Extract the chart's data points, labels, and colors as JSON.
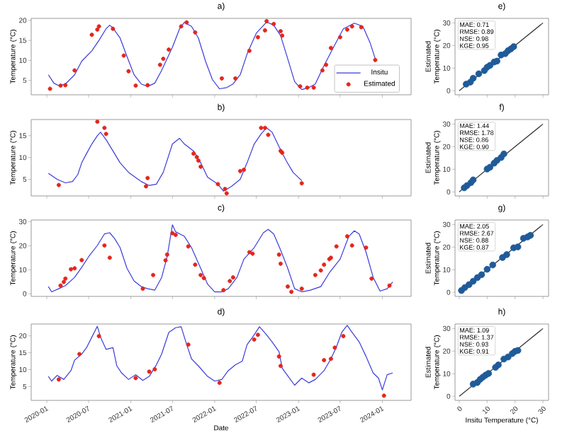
{
  "chart_data": [
    {
      "type": "line",
      "title": "a)",
      "ylabel": "Temperature (°C)",
      "xlim": [
        "2019-10-25",
        "2024-05-05"
      ],
      "ylim": [
        1.4,
        20.5
      ],
      "xticks": [
        "2020-01",
        "2020-07",
        "2021-01",
        "2021-07",
        "2022-01",
        "2022-07",
        "2023-01",
        "2023-07",
        "2024-01"
      ],
      "yticks": [
        5,
        10,
        15,
        20
      ],
      "tick_labels": "y",
      "legend": "bottom right",
      "series": [
        {
          "name": "Insitu",
          "type": "line",
          "color": "#3b3bdc",
          "x": [
            "2020-01-08",
            "2020-02-01",
            "2020-02-22",
            "2020-03-22",
            "2020-05-01",
            "2020-06-01",
            "2020-07-15",
            "2020-08-15",
            "2020-09-15",
            "2020-10-01",
            "2020-10-15",
            "2020-11-15",
            "2020-12-15",
            "2021-01-15",
            "2021-02-15",
            "2021-03-15",
            "2021-04-15",
            "2021-05-15",
            "2021-07-01",
            "2021-08-01",
            "2021-08-22",
            "2021-09-22",
            "2021-10-22",
            "2021-11-22",
            "2021-12-22",
            "2022-01-22",
            "2022-02-22",
            "2022-03-22",
            "2022-04-22",
            "2022-05-22",
            "2022-07-01",
            "2022-08-15",
            "2022-09-15",
            "2022-10-15",
            "2022-11-15",
            "2022-12-15",
            "2023-01-15",
            "2023-02-15",
            "2023-03-15",
            "2023-04-22",
            "2023-06-08",
            "2023-07-15",
            "2023-09-01",
            "2023-10-08",
            "2023-11-08",
            "2023-12-01"
          ],
          "values": [
            6.4,
            4.3,
            3.7,
            4.1,
            6.4,
            9.8,
            12.4,
            15.0,
            17.9,
            18.8,
            18.1,
            15.6,
            11.0,
            6.4,
            4.1,
            3.5,
            4.3,
            7.5,
            13.3,
            17.9,
            19.5,
            18.5,
            15.6,
            9.8,
            5.2,
            2.9,
            3.2,
            4.1,
            6.4,
            11.6,
            16.8,
            19.6,
            18.8,
            16.2,
            10.4,
            4.7,
            2.7,
            3.2,
            4.1,
            8.7,
            13.9,
            17.9,
            19.3,
            18.5,
            14.5,
            10.4
          ]
        },
        {
          "name": "Estimated",
          "type": "scatter",
          "marker": "circle",
          "color": "#e4261c",
          "x": [
            "2020-01-15",
            "2020-03-01",
            "2020-03-22",
            "2020-05-01",
            "2020-07-15",
            "2020-08-08",
            "2020-08-15",
            "2020-10-15",
            "2020-12-01",
            "2020-12-22",
            "2021-01-22",
            "2021-03-15",
            "2021-05-08",
            "2021-05-22",
            "2021-06-15",
            "2021-08-08",
            "2021-09-01",
            "2021-10-08",
            "2022-02-01",
            "2022-04-01",
            "2022-06-01",
            "2022-07-08",
            "2022-08-08",
            "2022-08-15",
            "2022-09-15",
            "2022-10-15",
            "2022-10-22",
            "2023-01-08",
            "2023-02-08",
            "2023-03-08",
            "2023-04-15",
            "2023-05-01",
            "2023-05-22",
            "2023-07-01",
            "2023-08-01",
            "2023-08-22",
            "2023-10-01",
            "2023-12-01"
          ],
          "values": [
            2.9,
            3.7,
            3.8,
            7.5,
            16.4,
            17.7,
            18.5,
            17.9,
            11.2,
            7.3,
            3.7,
            3.8,
            8.9,
            10.4,
            12.7,
            18.5,
            19.5,
            17.0,
            5.5,
            5.5,
            12.4,
            15.8,
            17.5,
            19.8,
            19.1,
            17.3,
            16.2,
            3.5,
            3.2,
            3.2,
            7.5,
            8.9,
            13.1,
            15.8,
            17.7,
            18.5,
            18.3,
            10.1
          ]
        }
      ]
    },
    {
      "type": "scatter",
      "title": "e)",
      "ylabel": "Estimated Temperature (°C)",
      "xlim": [
        -1.5,
        32
      ],
      "ylim": [
        -1.8,
        32
      ],
      "xticks": [
        0,
        10,
        20,
        30
      ],
      "yticks": [
        0,
        10,
        20,
        30
      ],
      "tick_labels": "y",
      "annotations": [
        "MAE: 0.71",
        "RMSE: 0.89",
        "NSE: 0.98",
        "KGE: 0.95"
      ],
      "series": [
        {
          "type": "scatter",
          "marker": "circle",
          "color": "#1f5b99",
          "x": [
            2.5,
            4,
            5,
            7,
            9,
            10,
            11,
            12.5,
            13.5,
            15,
            16.5,
            17.5,
            18.5,
            19.5
          ],
          "values": [
            2.9,
            3.8,
            5.5,
            7.5,
            8.9,
            10.4,
            11.2,
            12.7,
            13.1,
            15.8,
            16.4,
            17.7,
            18.5,
            19.5
          ]
        },
        {
          "type": "line",
          "color": "#333333",
          "x": [
            0,
            30
          ],
          "values": [
            0,
            30
          ]
        }
      ]
    },
    {
      "type": "line",
      "title": "b)",
      "ylabel": "Temperature (°C)",
      "xlim": [
        "2019-10-25",
        "2024-05-05"
      ],
      "ylim": [
        1.2,
        18.7
      ],
      "xticks": [
        "2020-01",
        "2020-07",
        "2021-01",
        "2021-07",
        "2022-01",
        "2022-07",
        "2023-01",
        "2023-07",
        "2024-01"
      ],
      "yticks": [
        5,
        10,
        15
      ],
      "tick_labels": "y",
      "series": [
        {
          "type": "line",
          "color": "#3b3bdc",
          "x": [
            "2020-01-08",
            "2020-02-15",
            "2020-03-22",
            "2020-04-22",
            "2020-05-15",
            "2020-06-01",
            "2020-06-22",
            "2020-07-15",
            "2020-08-08",
            "2020-08-22",
            "2020-09-15",
            "2020-10-15",
            "2020-11-15",
            "2020-12-22",
            "2021-02-15",
            "2021-03-22",
            "2021-04-22",
            "2021-05-22",
            "2021-07-01",
            "2021-08-01",
            "2021-08-22",
            "2021-10-01",
            "2021-11-01",
            "2021-12-01",
            "2022-01-15",
            "2022-02-08",
            "2022-03-15",
            "2022-04-22",
            "2022-05-22",
            "2022-06-22",
            "2022-07-22",
            "2022-08-15",
            "2022-09-08",
            "2022-10-08",
            "2022-11-08",
            "2022-12-08",
            "2023-01-15"
          ],
          "values": [
            6.4,
            5.0,
            4.2,
            4.5,
            6.1,
            8.8,
            10.9,
            13.1,
            15.0,
            15.8,
            14.1,
            11.5,
            8.8,
            6.6,
            4.5,
            3.6,
            3.9,
            6.6,
            13.1,
            14.4,
            13.1,
            11.5,
            8.8,
            5.5,
            3.9,
            2.3,
            3.4,
            5.0,
            8.8,
            13.1,
            15.4,
            16.8,
            15.8,
            12.5,
            9.3,
            6.6,
            4.7
          ]
        },
        {
          "type": "scatter",
          "marker": "circle",
          "color": "#e4261c",
          "x": [
            "2020-02-22",
            "2020-08-08",
            "2020-09-08",
            "2020-09-15",
            "2021-03-08",
            "2021-03-15",
            "2021-10-01",
            "2021-10-15",
            "2021-10-22",
            "2021-11-01",
            "2022-01-15",
            "2022-02-15",
            "2022-02-22",
            "2022-04-22",
            "2022-05-08",
            "2022-07-22",
            "2022-08-08",
            "2022-08-22",
            "2022-10-15",
            "2022-10-22",
            "2023-01-15"
          ],
          "values": [
            3.7,
            18.2,
            16.8,
            15.4,
            3.4,
            5.3,
            10.9,
            10.1,
            9.3,
            7.9,
            3.9,
            2.8,
            1.8,
            6.9,
            7.2,
            16.8,
            16.8,
            15.2,
            11.5,
            11.1,
            4.1
          ]
        }
      ]
    },
    {
      "type": "scatter",
      "title": "f)",
      "ylabel": "Estimated Temperature (°C)",
      "xlim": [
        -1.5,
        32
      ],
      "ylim": [
        -1.8,
        32
      ],
      "xticks": [
        0,
        10,
        20,
        30
      ],
      "yticks": [
        0,
        10,
        20,
        30
      ],
      "tick_labels": "y",
      "annotations": [
        "MAE: 1.44",
        "RMSE: 1.78",
        "NSE: 0.86",
        "KGE: 0.90"
      ],
      "series": [
        {
          "type": "scatter",
          "marker": "circle",
          "color": "#1f5b99",
          "x": [
            1.8,
            2.8,
            4.2,
            5,
            10,
            11,
            12.5,
            13.5,
            15,
            16
          ],
          "values": [
            1.8,
            2.8,
            4.1,
            5.3,
            10.1,
            10.9,
            12.7,
            13.9,
            15.2,
            16.8
          ]
        },
        {
          "type": "line",
          "color": "#333333",
          "x": [
            0,
            30
          ],
          "values": [
            0,
            30
          ]
        }
      ]
    },
    {
      "type": "line",
      "title": "c)",
      "ylabel": "Temperature (°C)",
      "xlim": [
        "2019-10-25",
        "2024-05-05"
      ],
      "ylim": [
        -1.1,
        30.7
      ],
      "xticks": [
        "2020-01",
        "2020-07",
        "2021-01",
        "2021-07",
        "2022-01",
        "2022-07",
        "2023-01",
        "2023-07",
        "2024-01"
      ],
      "yticks": [
        0,
        10,
        20,
        30
      ],
      "tick_labels": "y",
      "series": [
        {
          "type": "line",
          "color": "#3b3bdc",
          "x": [
            "2020-01-08",
            "2020-01-22",
            "2020-02-22",
            "2020-03-22",
            "2020-05-01",
            "2020-06-01",
            "2020-07-01",
            "2020-08-08",
            "2020-09-08",
            "2020-10-01",
            "2020-10-22",
            "2020-11-15",
            "2020-12-15",
            "2021-01-15",
            "2021-02-15",
            "2021-03-15",
            "2021-04-15",
            "2021-05-15",
            "2021-06-08",
            "2021-07-01",
            "2021-07-15",
            "2021-08-22",
            "2021-09-22",
            "2021-11-01",
            "2021-12-01",
            "2022-01-01",
            "2022-02-01",
            "2022-03-01",
            "2022-04-08",
            "2022-05-08",
            "2022-06-22",
            "2022-08-01",
            "2022-08-22",
            "2022-09-15",
            "2022-10-15",
            "2022-11-15",
            "2022-12-15",
            "2023-01-15",
            "2023-02-22",
            "2023-04-08",
            "2023-05-15",
            "2023-07-01",
            "2023-08-08",
            "2023-09-01",
            "2023-09-22",
            "2023-10-22",
            "2023-11-22",
            "2023-12-22",
            "2024-01-22",
            "2024-02-15"
          ],
          "values": [
            3.0,
            0.8,
            2.1,
            3.4,
            6.8,
            11.0,
            15.4,
            20.1,
            24.9,
            25.4,
            23.0,
            19.2,
            10.6,
            5.3,
            3.0,
            2.1,
            1.5,
            6.8,
            15.4,
            28.7,
            25.8,
            23.9,
            19.2,
            10.6,
            4.0,
            0.8,
            0.8,
            2.1,
            6.8,
            14.4,
            19.2,
            25.4,
            26.8,
            24.9,
            18.2,
            10.6,
            2.1,
            0.8,
            1.5,
            3.0,
            8.7,
            14.4,
            23.9,
            26.2,
            24.9,
            17.3,
            6.8,
            1.1,
            2.1,
            4.9
          ]
        },
        {
          "type": "scatter",
          "marker": "circle",
          "color": "#e4261c",
          "x": [
            "2020-03-01",
            "2020-03-15",
            "2020-03-22",
            "2020-04-15",
            "2020-05-01",
            "2020-06-01",
            "2020-09-08",
            "2020-10-01",
            "2021-02-22",
            "2021-04-08",
            "2021-06-01",
            "2021-06-08",
            "2021-07-01",
            "2021-07-15",
            "2021-09-08",
            "2021-10-08",
            "2021-11-01",
            "2021-11-15",
            "2022-02-08",
            "2022-03-08",
            "2022-03-22",
            "2022-06-01",
            "2022-06-15",
            "2022-10-08",
            "2022-10-15",
            "2022-11-15",
            "2022-12-01",
            "2023-01-15",
            "2023-03-15",
            "2023-04-08",
            "2023-04-22",
            "2023-05-15",
            "2023-05-22",
            "2023-06-15",
            "2023-08-01",
            "2023-08-22",
            "2023-10-22",
            "2023-11-15",
            "2024-02-01"
          ],
          "values": [
            3.4,
            4.9,
            6.3,
            10.2,
            10.6,
            14.0,
            20.1,
            15.0,
            2.1,
            7.8,
            13.9,
            16.3,
            25.2,
            24.5,
            19.7,
            12.1,
            7.8,
            6.5,
            1.5,
            5.3,
            6.8,
            17.3,
            16.7,
            16.3,
            12.5,
            3.0,
            0.8,
            2.1,
            7.8,
            9.7,
            12.1,
            14.4,
            15.0,
            19.7,
            23.9,
            20.1,
            19.2,
            6.3,
            3.4
          ]
        }
      ]
    },
    {
      "type": "scatter",
      "title": "g)",
      "ylabel": "Estimated Temperature (°C)",
      "xlim": [
        -1.5,
        32
      ],
      "ylim": [
        -1.8,
        32
      ],
      "xticks": [
        0,
        10,
        20,
        30
      ],
      "yticks": [
        0,
        10,
        20,
        30
      ],
      "tick_labels": "y",
      "annotations": [
        "MAE: 2.05",
        "RMSE: 2.67",
        "NSE: 0.88",
        "KGE: 0.87"
      ],
      "series": [
        {
          "type": "scatter",
          "marker": "circle",
          "color": "#1f5b99",
          "x": [
            0.8,
            2,
            3.5,
            5,
            6.5,
            8,
            10,
            12,
            15.5,
            17,
            19.5,
            21,
            23,
            24.5,
            25.5
          ],
          "values": [
            0.8,
            2.1,
            3.4,
            4.9,
            6.5,
            7.8,
            10.2,
            12.1,
            15.4,
            16.7,
            19.7,
            20.1,
            23.9,
            24.5,
            25.2
          ]
        },
        {
          "type": "line",
          "color": "#333333",
          "x": [
            0,
            30
          ],
          "values": [
            0,
            30
          ]
        }
      ]
    },
    {
      "type": "line",
      "title": "d)",
      "xlabel": "Date",
      "ylabel": "Temperature (°C)",
      "xlim": [
        "2019-10-25",
        "2024-05-05"
      ],
      "ylim": [
        0.9,
        23.5
      ],
      "xticks": [
        "2020-01",
        "2020-07",
        "2021-01",
        "2021-07",
        "2022-01",
        "2022-07",
        "2023-01",
        "2023-07",
        "2024-01"
      ],
      "yticks": [
        5,
        10,
        15,
        20
      ],
      "series": [
        {
          "type": "line",
          "color": "#3b3bdc",
          "x": [
            "2020-01-08",
            "2020-01-22",
            "2020-02-15",
            "2020-03-15",
            "2020-04-15",
            "2020-05-01",
            "2020-06-01",
            "2020-06-22",
            "2020-07-15",
            "2020-08-08",
            "2020-08-22",
            "2020-09-15",
            "2020-10-15",
            "2020-11-01",
            "2020-11-22",
            "2020-12-22",
            "2021-01-22",
            "2021-02-22",
            "2021-03-22",
            "2021-04-22",
            "2021-05-15",
            "2021-06-15",
            "2021-07-15",
            "2021-08-08",
            "2021-09-01",
            "2021-09-22",
            "2021-10-22",
            "2021-12-01",
            "2022-01-01",
            "2022-02-01",
            "2022-03-01",
            "2022-04-01",
            "2022-05-01",
            "2022-05-22",
            "2022-06-15",
            "2022-07-15",
            "2022-08-15",
            "2022-09-08",
            "2022-10-08",
            "2022-10-22",
            "2022-11-22",
            "2022-12-15",
            "2023-01-15",
            "2023-02-15",
            "2023-03-15",
            "2023-04-22",
            "2023-05-22",
            "2023-06-15",
            "2023-07-08",
            "2023-08-01",
            "2023-08-15",
            "2023-09-22",
            "2023-10-22",
            "2023-11-22",
            "2023-12-15",
            "2024-01-01",
            "2024-01-22",
            "2024-02-15"
          ],
          "values": [
            8.0,
            6.6,
            8.3,
            7.1,
            9.7,
            12.8,
            14.6,
            16.5,
            19.6,
            22.8,
            19.6,
            16.0,
            16.5,
            11.1,
            9.0,
            7.1,
            8.5,
            6.8,
            8.0,
            11.4,
            14.6,
            21.0,
            22.4,
            22.7,
            17.4,
            13.2,
            11.1,
            8.0,
            6.6,
            7.1,
            9.7,
            11.4,
            12.5,
            17.4,
            19.6,
            22.7,
            20.3,
            18.2,
            15.3,
            10.4,
            7.5,
            5.4,
            7.5,
            6.1,
            7.1,
            9.7,
            13.2,
            16.7,
            21.0,
            23.1,
            21.7,
            18.2,
            13.9,
            9.0,
            7.5,
            4.0,
            8.5,
            9.0
          ]
        },
        {
          "type": "scatter",
          "marker": "circle",
          "color": "#e4261c",
          "x": [
            "2020-02-22",
            "2020-05-22",
            "2020-08-15",
            "2021-01-22",
            "2021-03-22",
            "2021-04-15",
            "2021-09-08",
            "2022-01-22",
            "2022-06-22",
            "2022-07-08",
            "2022-10-08",
            "2022-10-15",
            "2023-03-08",
            "2023-04-22",
            "2023-05-22",
            "2023-06-08",
            "2023-07-15",
            "2024-01-08"
          ],
          "values": [
            7.1,
            14.6,
            19.9,
            7.5,
            9.4,
            10.1,
            17.4,
            6.1,
            18.9,
            20.3,
            13.9,
            11.1,
            8.5,
            12.8,
            13.2,
            16.5,
            19.9,
            2.3
          ]
        }
      ]
    },
    {
      "type": "scatter",
      "title": "h)",
      "xlabel": "Insitu Temperature (°C)",
      "ylabel": "Estimated Temperature (°C)",
      "xlim": [
        -1.5,
        32
      ],
      "ylim": [
        -1.8,
        32
      ],
      "xticks": [
        0,
        10,
        20,
        30
      ],
      "yticks": [
        0,
        10,
        20,
        30
      ],
      "annotations": [
        "MAE: 1.09",
        "RMSE: 1.37",
        "NSE: 0.93",
        "KGE: 0.91"
      ],
      "series": [
        {
          "type": "scatter",
          "marker": "circle",
          "color": "#1f5b99",
          "x": [
            5,
            6.5,
            7.5,
            8.5,
            9.5,
            10.5,
            13,
            14,
            16,
            17.5,
            19,
            20,
            21
          ],
          "values": [
            5.4,
            6.1,
            7.5,
            8.5,
            9.4,
            10.1,
            12.8,
            13.9,
            16.5,
            17.4,
            18.9,
            19.9,
            20.3
          ]
        },
        {
          "type": "line",
          "color": "#333333",
          "x": [
            0,
            30
          ],
          "values": [
            0,
            30
          ]
        }
      ]
    }
  ]
}
